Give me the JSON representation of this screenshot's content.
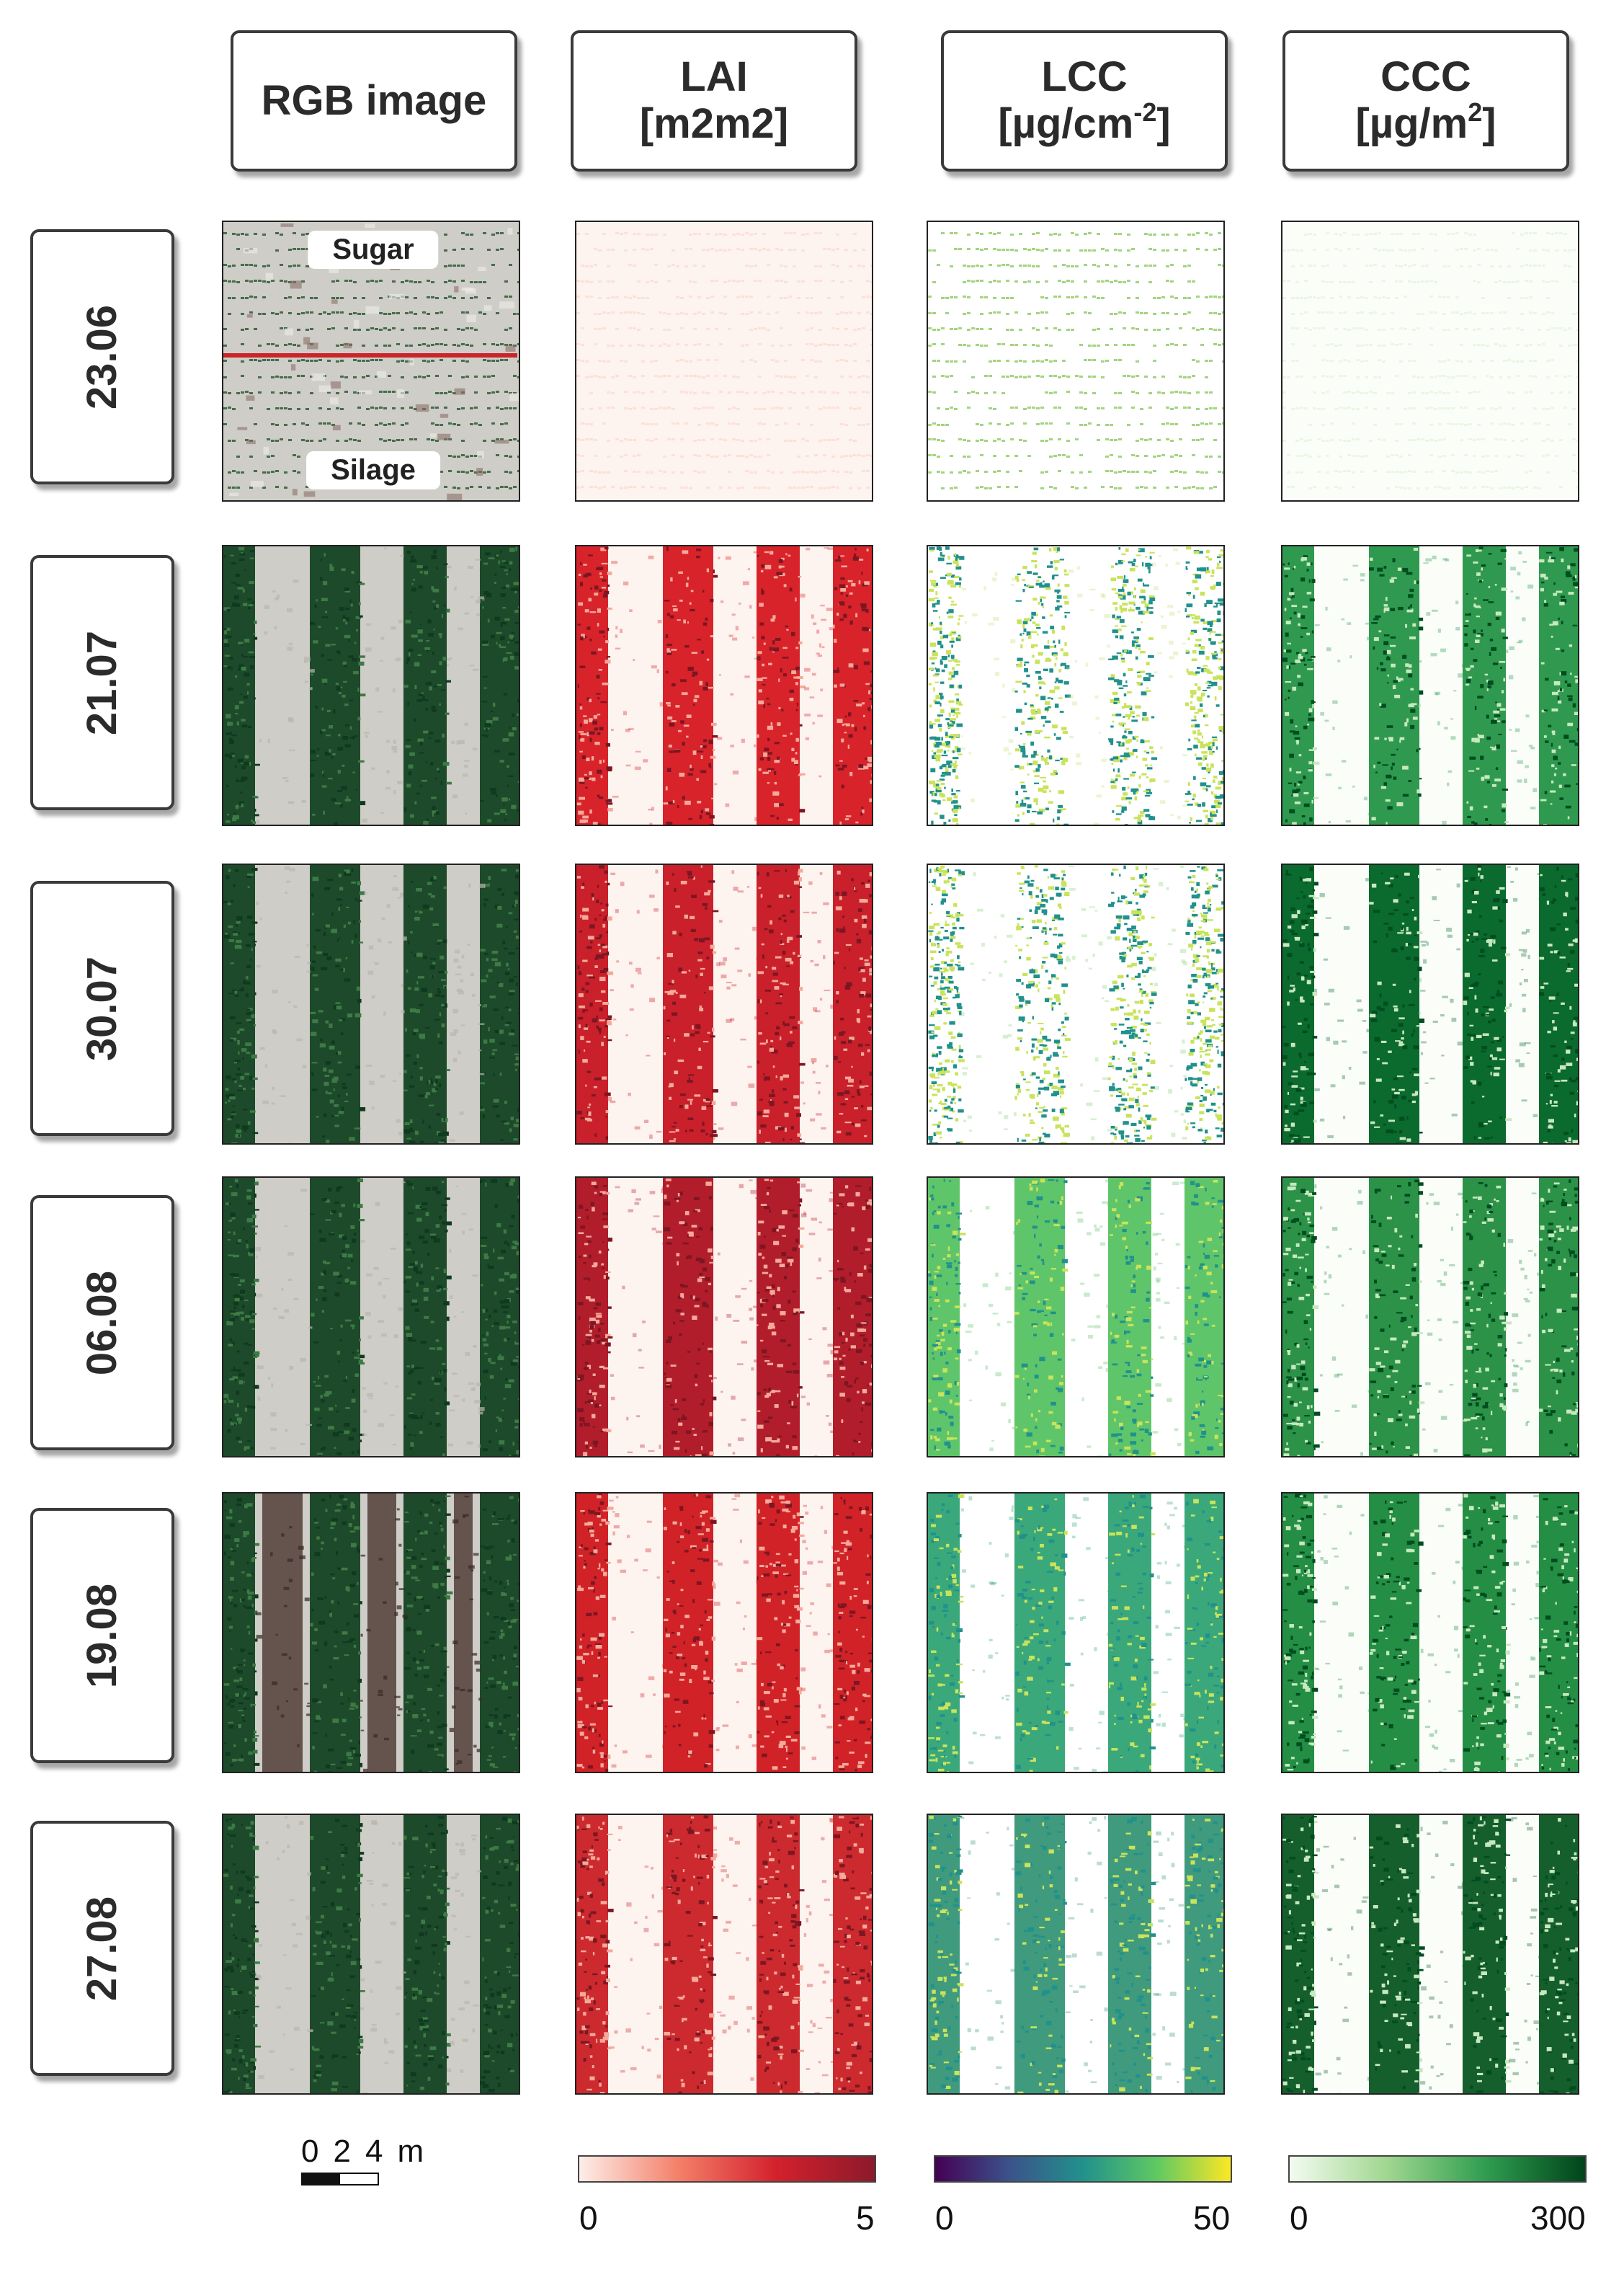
{
  "headers": [
    {
      "name": "rgb-header",
      "main": "RGB image",
      "sup": "",
      "after": ""
    },
    {
      "name": "lai-header",
      "line1": "LAI",
      "main": "[m2m2]",
      "sup": "",
      "after": ""
    },
    {
      "name": "lcc-header",
      "line1": "LCC",
      "main": "[µg/cm",
      "sup": "-2",
      "after": "]"
    },
    {
      "name": "ccc-header",
      "line1": "CCC",
      "main": "[µg/m",
      "sup": "2",
      "after": "]"
    }
  ],
  "dates": [
    "23.06",
    "21.07",
    "30.07",
    "06.08",
    "19.08",
    "27.08"
  ],
  "plot_labels": {
    "top": "Sugar",
    "bottom": "Silage"
  },
  "scale_bar": {
    "ticks": [
      "0",
      "2",
      "4"
    ],
    "unit": "m"
  },
  "legends": [
    {
      "name": "lai",
      "min": "0",
      "max": "5",
      "colors": [
        "#fdeee8",
        "#f4806a",
        "#d3212c",
        "#8c1a2b"
      ]
    },
    {
      "name": "lcc",
      "min": "0",
      "max": "50",
      "colors": [
        "#440154",
        "#3b528b",
        "#21918c",
        "#5ec962",
        "#fde725"
      ]
    },
    {
      "name": "ccc",
      "min": "0",
      "max": "300",
      "colors": [
        "#f3fbf0",
        "#9fd68f",
        "#2e9d4f",
        "#00441b"
      ]
    }
  ],
  "colors": {
    "rgb_soil": "#cfcdc7",
    "rgb_canopy": "#1d4a2a",
    "lai_row_colors": [
      "#fbd9cd",
      "#d8232b",
      "#c9202b",
      "#b21d2b",
      "#d12228",
      "#cc2a2f"
    ],
    "lcc_row_colors": [
      "#7dc24a",
      "#c8e07a",
      "#8fd07e",
      "#5fc56a",
      "#3aa87a",
      "#3f9a7e"
    ],
    "ccc_row_colors": [
      "#e2f2dc",
      "#2f9a4f",
      "#0b6a2e",
      "#2b9248",
      "#248e44",
      "#145f2c"
    ]
  }
}
